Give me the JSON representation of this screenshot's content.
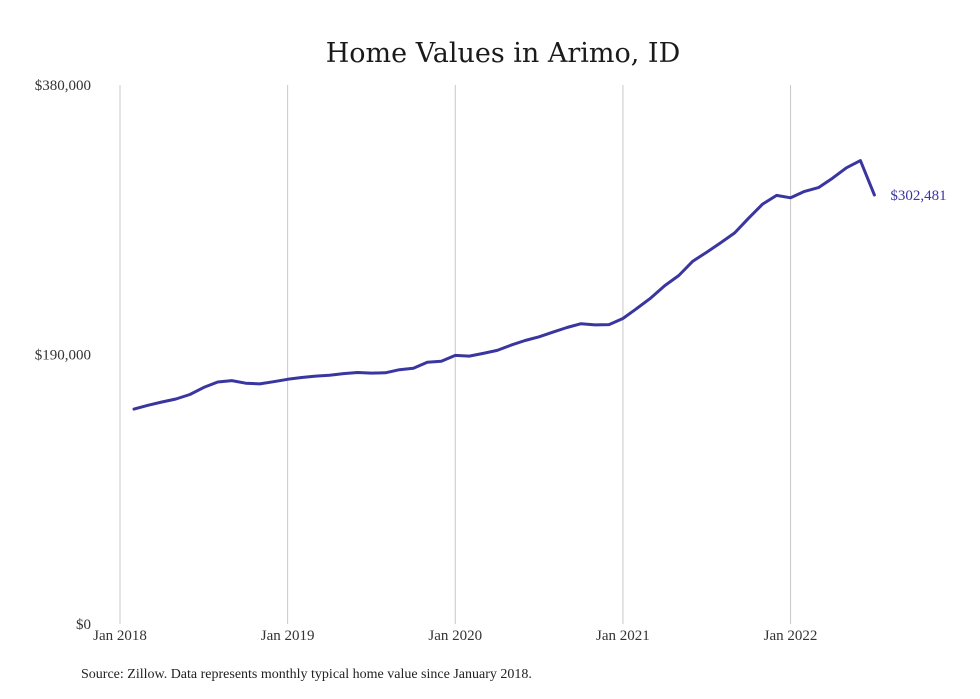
{
  "chart_data": {
    "type": "line",
    "title": "Home Values in Arimo, ID",
    "xlabel": "",
    "ylabel": "",
    "ylim": [
      0,
      380000
    ],
    "y_ticks": [
      {
        "value": 0,
        "label": "$0"
      },
      {
        "value": 190000,
        "label": "$190,000"
      },
      {
        "value": 380000,
        "label": "$380,000"
      }
    ],
    "x_ticks": [
      {
        "month_index": 0,
        "label": "Jan 2018"
      },
      {
        "month_index": 12,
        "label": "Jan 2019"
      },
      {
        "month_index": 24,
        "label": "Jan 2020"
      },
      {
        "month_index": 36,
        "label": "Jan 2021"
      },
      {
        "month_index": 48,
        "label": "Jan 2022"
      }
    ],
    "grid": "vertical",
    "series": [
      {
        "color": "#3a36a0",
        "end_label": "$302,481",
        "x": [
          "2018-02",
          "2018-03",
          "2018-04",
          "2018-05",
          "2018-06",
          "2018-07",
          "2018-08",
          "2018-09",
          "2018-10",
          "2018-11",
          "2018-12",
          "2019-01",
          "2019-02",
          "2019-03",
          "2019-04",
          "2019-05",
          "2019-06",
          "2019-07",
          "2019-08",
          "2019-09",
          "2019-10",
          "2019-11",
          "2019-12",
          "2020-01",
          "2020-02",
          "2020-03",
          "2020-04",
          "2020-05",
          "2020-06",
          "2020-07",
          "2020-08",
          "2020-09",
          "2020-10",
          "2020-11",
          "2020-12",
          "2021-01",
          "2021-02",
          "2021-03",
          "2021-04",
          "2021-05",
          "2021-06",
          "2021-07",
          "2021-08",
          "2021-09",
          "2021-10",
          "2021-11",
          "2021-12",
          "2022-01",
          "2022-02",
          "2022-03",
          "2022-04",
          "2022-05",
          "2022-06",
          "2022-07"
        ],
        "values": [
          151500,
          154200,
          156500,
          158600,
          161800,
          166800,
          170600,
          171600,
          169800,
          169300,
          170800,
          172500,
          173800,
          174800,
          175400,
          176500,
          177300,
          176900,
          177100,
          179300,
          180300,
          184600,
          185200,
          189400,
          188900,
          190800,
          192900,
          196600,
          199900,
          202500,
          205800,
          209000,
          211700,
          210900,
          211100,
          215400,
          222500,
          229900,
          238600,
          245700,
          255800,
          262100,
          268800,
          275700,
          286100,
          296000,
          302200,
          300481,
          305000,
          307700,
          314300,
          321600,
          326700,
          302481
        ]
      }
    ]
  },
  "footer": {
    "source": "Source: Zillow. Data represents monthly typical home value since January 2018."
  }
}
